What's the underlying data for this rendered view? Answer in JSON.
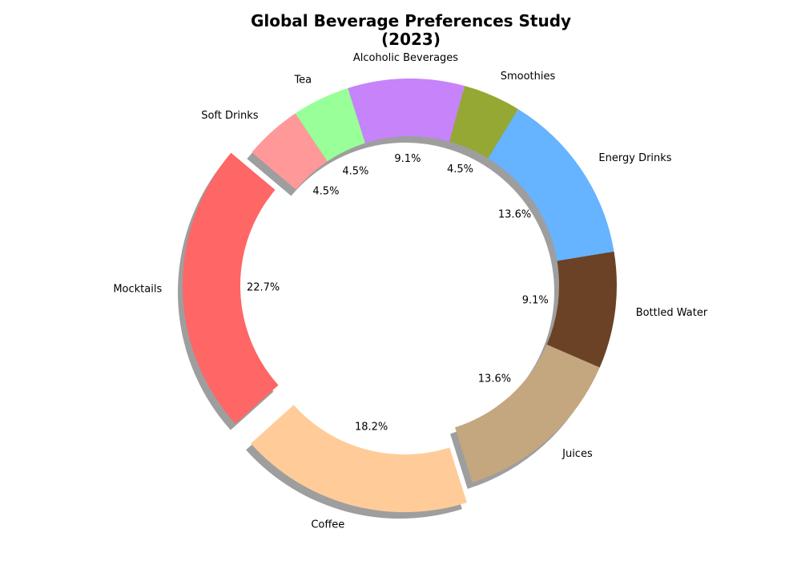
{
  "chart_data": {
    "type": "pie",
    "variant": "donut",
    "title_lines": [
      "Global Beverage Preferences Study",
      "(2023)"
    ],
    "start_angle_deg": 140,
    "direction": "counterclockwise",
    "shadow": true,
    "explode": [
      "Mocktails",
      "Coffee"
    ],
    "slices": [
      {
        "label": "Mocktails",
        "value": 22.7,
        "pct_label": "22.7%",
        "color": "#ff6666"
      },
      {
        "label": "Coffee",
        "value": 18.2,
        "pct_label": "18.2%",
        "color": "#ffcc99"
      },
      {
        "label": "Juices",
        "value": 13.6,
        "pct_label": "13.6%",
        "color": "#c4a77f"
      },
      {
        "label": "Bottled Water",
        "value": 9.1,
        "pct_label": "9.1%",
        "color": "#6b4226"
      },
      {
        "label": "Energy Drinks",
        "value": 13.6,
        "pct_label": "13.6%",
        "color": "#66b3ff"
      },
      {
        "label": "Smoothies",
        "value": 4.5,
        "pct_label": "4.5%",
        "color": "#94a833"
      },
      {
        "label": "Alcoholic Beverages",
        "value": 9.1,
        "pct_label": "9.1%",
        "color": "#c683fa"
      },
      {
        "label": "Tea",
        "value": 4.5,
        "pct_label": "4.5%",
        "color": "#99ff99"
      },
      {
        "label": "Soft Drinks",
        "value": 4.5,
        "pct_label": "4.5%",
        "color": "#ff9999"
      }
    ]
  }
}
